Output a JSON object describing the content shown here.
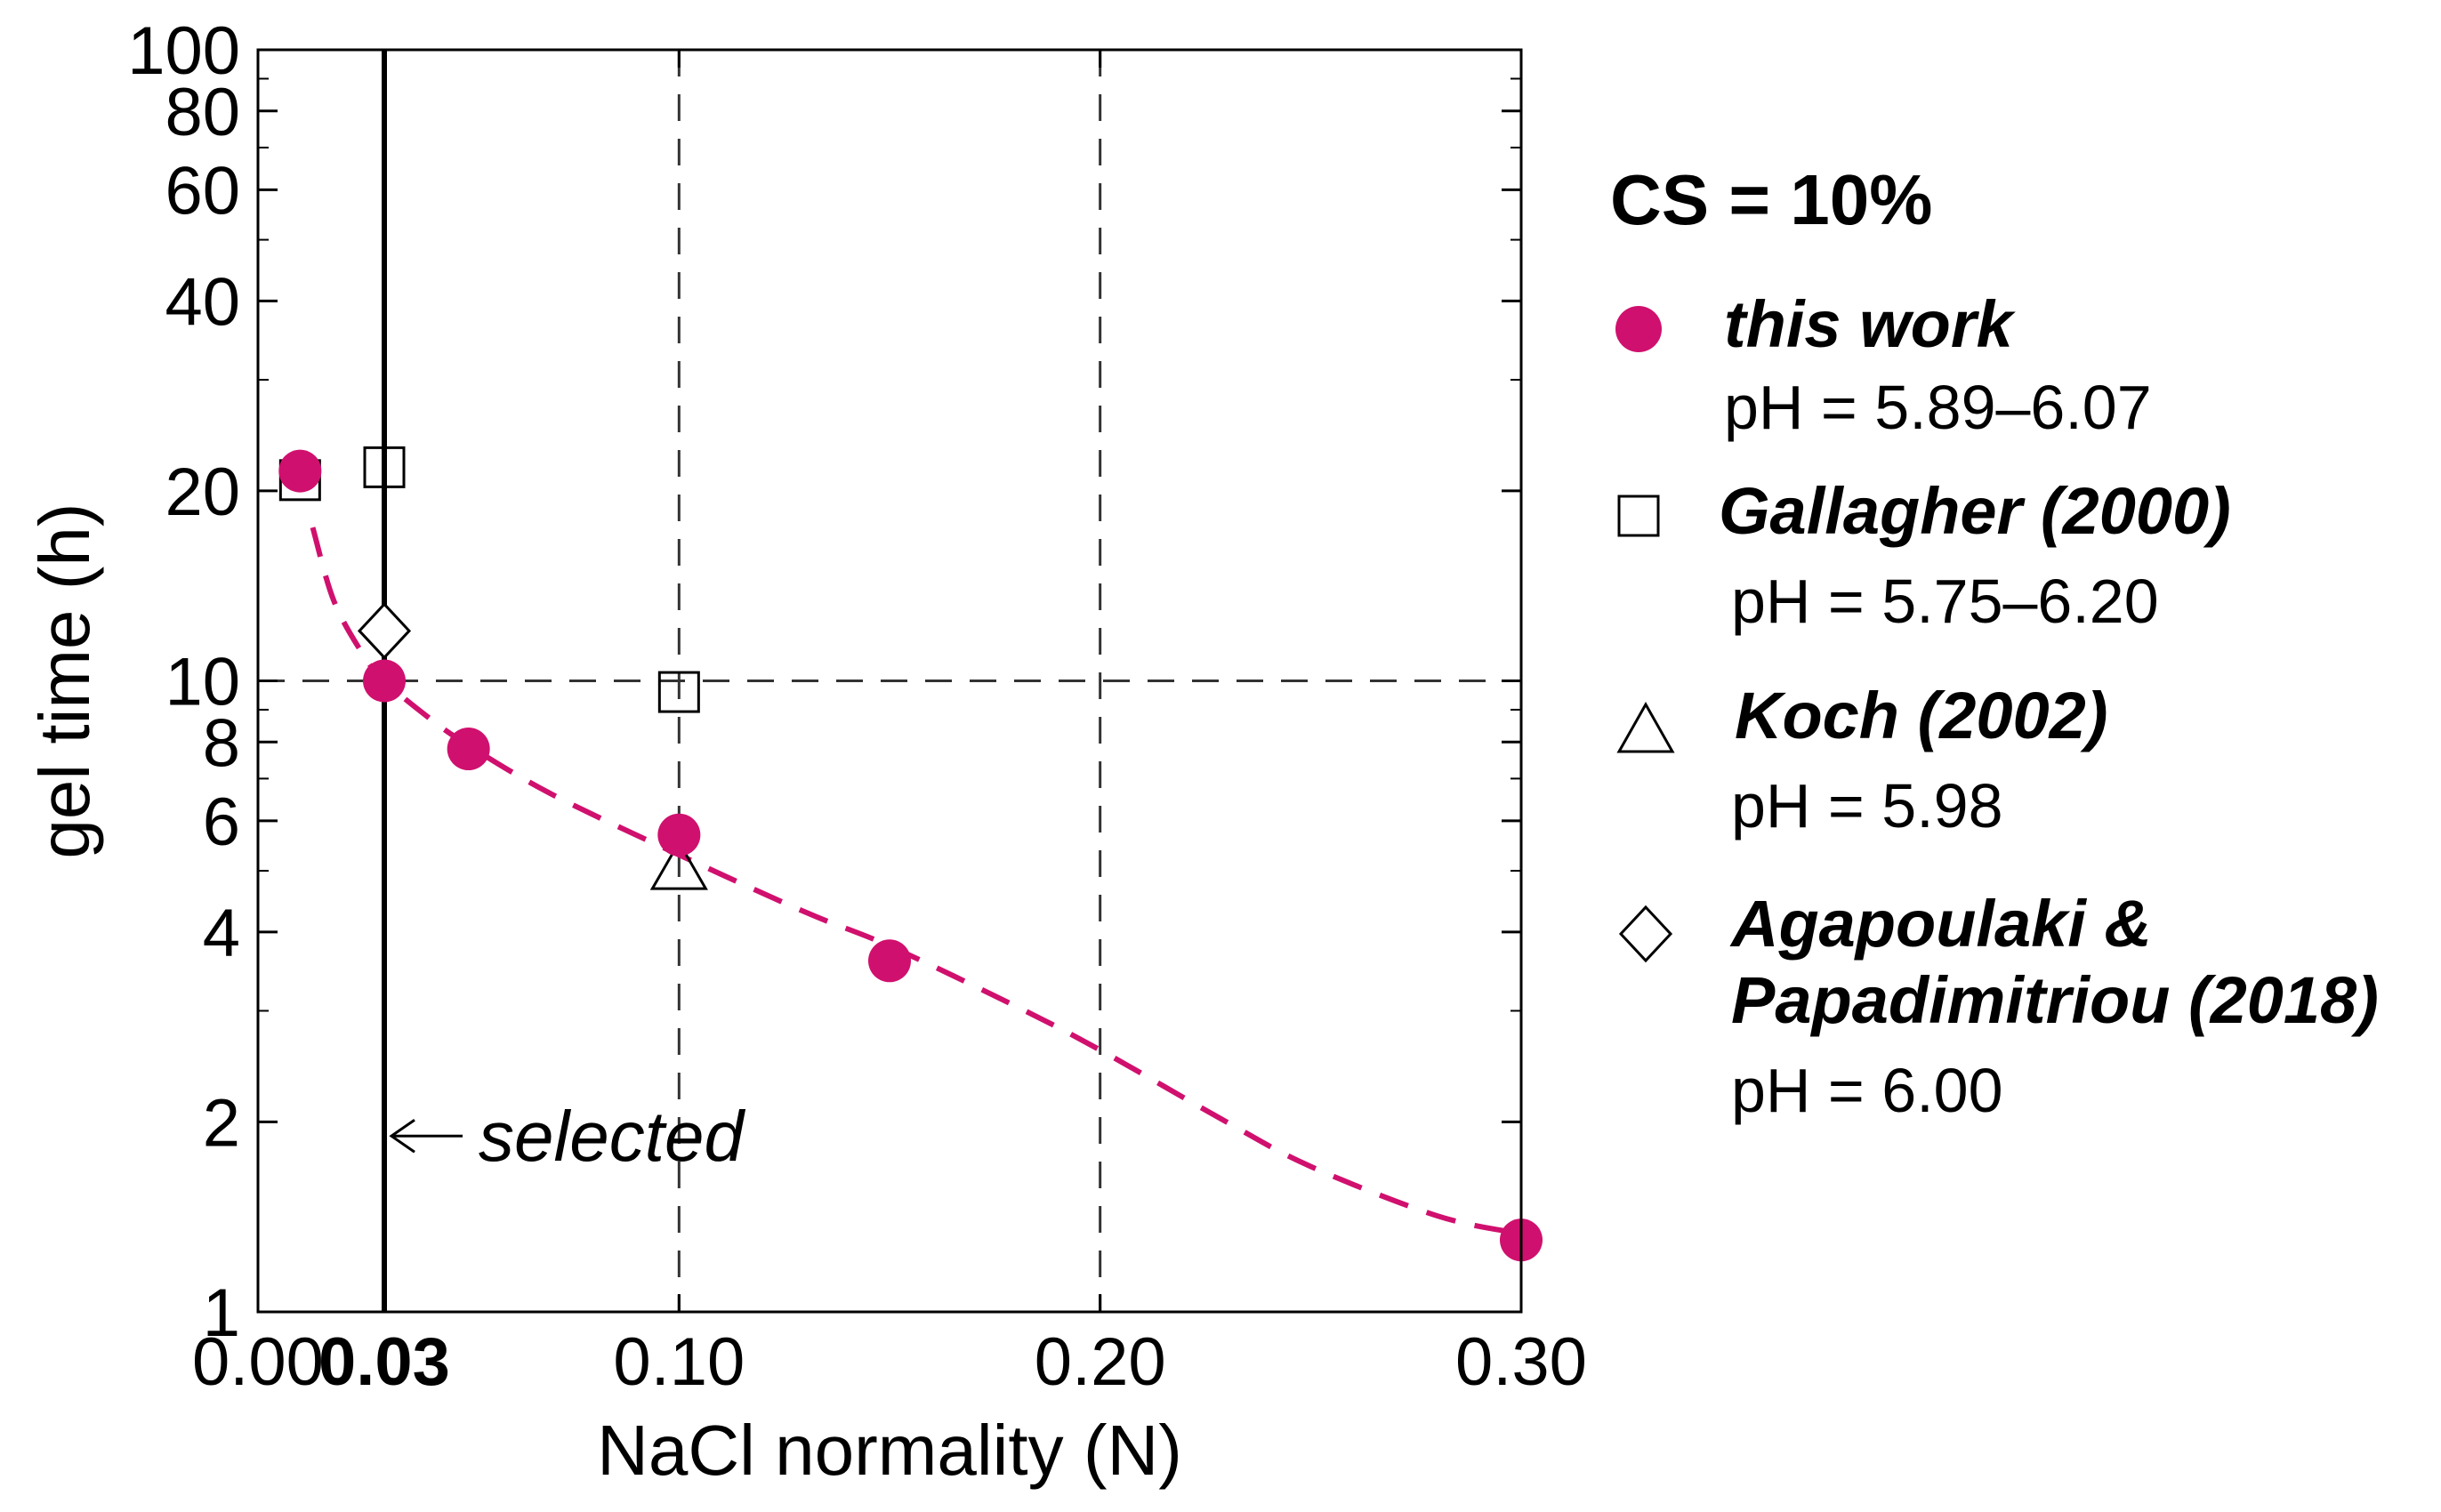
{
  "chart_data": {
    "type": "scatter",
    "xlabel": "NaCl normality (N)",
    "ylabel": "gel time (h)",
    "xlim": [
      0,
      0.3
    ],
    "ylim": [
      1,
      100
    ],
    "yscale": "log",
    "x_ticks": [
      {
        "value": 0.0,
        "label": "0.00",
        "bold": false
      },
      {
        "value": 0.03,
        "label": "0.03",
        "bold": true
      },
      {
        "value": 0.1,
        "label": "0.10",
        "bold": false
      },
      {
        "value": 0.2,
        "label": "0.20",
        "bold": false
      },
      {
        "value": 0.3,
        "label": "0.30",
        "bold": false
      }
    ],
    "y_ticks": [
      {
        "value": 1,
        "label": "1"
      },
      {
        "value": 2,
        "label": "2"
      },
      {
        "value": 4,
        "label": "4"
      },
      {
        "value": 6,
        "label": "6"
      },
      {
        "value": 8,
        "label": "8"
      },
      {
        "value": 10,
        "label": "10"
      },
      {
        "value": 20,
        "label": "20"
      },
      {
        "value": 40,
        "label": "40"
      },
      {
        "value": 60,
        "label": "60"
      },
      {
        "value": 80,
        "label": "80"
      },
      {
        "value": 100,
        "label": "100"
      }
    ],
    "y_minor_ticks": [
      3,
      5,
      7,
      9,
      30,
      50,
      70,
      90
    ],
    "reference_lines": [
      {
        "axis": "x",
        "value": 0.03,
        "style": "solid"
      },
      {
        "axis": "x",
        "value": 0.1,
        "style": "dashed"
      },
      {
        "axis": "x",
        "value": 0.2,
        "style": "dashed"
      },
      {
        "axis": "y",
        "value": 10,
        "style": "dashed"
      }
    ],
    "annotation": {
      "text": "selected",
      "x": 0.03,
      "y": 1.9
    },
    "legend_title": "CS = 10%",
    "series": [
      {
        "name": "this work",
        "ph": "pH = 5.89–6.07",
        "marker": "circle",
        "color": "#d0106e",
        "x": [
          0.01,
          0.03,
          0.05,
          0.1,
          0.15,
          0.3
        ],
        "y": [
          21.5,
          10,
          7.8,
          5.7,
          3.6,
          1.3
        ]
      },
      {
        "name": "Gallagher (2000)",
        "ph": "pH = 5.75–6.20",
        "marker": "square",
        "color": "#000000",
        "x": [
          0.01,
          0.03,
          0.1
        ],
        "y": [
          20.8,
          21.8,
          9.6
        ]
      },
      {
        "name": "Koch (2002)",
        "ph": "pH = 5.98",
        "marker": "triangle",
        "color": "#000000",
        "x": [
          0.1
        ],
        "y": [
          5.0
        ]
      },
      {
        "name": "Agapoulaki &",
        "name2": "Papadimitriou (2018)",
        "ph": "pH = 6.00",
        "marker": "diamond",
        "color": "#000000",
        "x": [
          0.03
        ],
        "y": [
          12.0
        ]
      }
    ],
    "fit_curve": {
      "color": "#d0106e",
      "style": "dashed",
      "x": [
        0.013,
        0.018,
        0.025,
        0.03,
        0.04,
        0.05,
        0.07,
        0.1,
        0.13,
        0.15,
        0.18,
        0.2,
        0.23,
        0.25,
        0.28,
        0.3
      ],
      "y": [
        17.5,
        13.4,
        11.0,
        10.0,
        8.8,
        7.9,
        6.6,
        5.3,
        4.3,
        3.8,
        3.05,
        2.6,
        2.0,
        1.7,
        1.42,
        1.33
      ]
    }
  }
}
